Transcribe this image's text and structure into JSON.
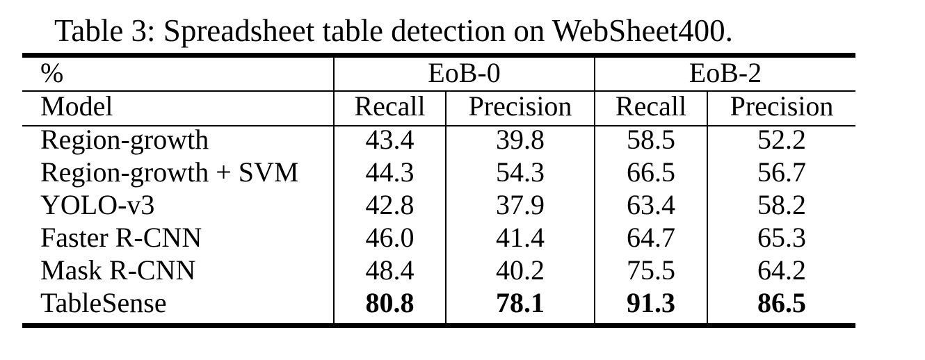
{
  "caption": "Table 3: Spreadsheet table detection on WebSheet400.",
  "header": {
    "unit": "%",
    "group1": "EoB-0",
    "group2": "EoB-2",
    "model_label": "Model",
    "sub": [
      "Recall",
      "Precision",
      "Recall",
      "Precision"
    ]
  },
  "rows": [
    {
      "model": "Region-growth",
      "values": [
        "43.4",
        "39.8",
        "58.5",
        "52.2"
      ]
    },
    {
      "model": "Region-growth + SVM",
      "values": [
        "44.3",
        "54.3",
        "66.5",
        "56.7"
      ]
    },
    {
      "model": "YOLO-v3",
      "values": [
        "42.8",
        "37.9",
        "63.4",
        "58.2"
      ]
    },
    {
      "model": "Faster R-CNN",
      "values": [
        "46.0",
        "41.4",
        "64.7",
        "65.3"
      ]
    },
    {
      "model": "Mask R-CNN",
      "values": [
        "48.4",
        "40.2",
        "75.5",
        "64.2"
      ]
    },
    {
      "model": "TableSense",
      "values": [
        "80.8",
        "78.1",
        "91.3",
        "86.5"
      ],
      "bold": true
    }
  ]
}
